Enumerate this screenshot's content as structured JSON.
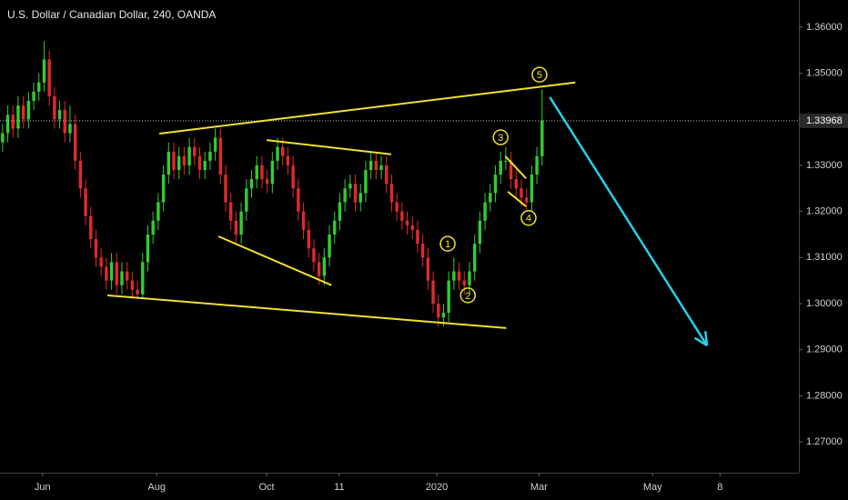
{
  "chart_data": {
    "type": "candlestick",
    "title": "U.S. Dollar / Canadian Dollar, 240, OANDA",
    "up_color": "#33cc33",
    "down_color": "#e02a2a",
    "open": [
      1.335,
      1.337,
      1.341,
      1.338,
      1.343,
      1.34,
      1.344,
      1.346,
      1.348,
      1.353,
      1.345,
      1.34,
      1.342,
      1.337,
      1.339,
      1.331,
      1.325,
      1.319,
      1.314,
      1.31,
      1.308,
      1.305,
      1.309,
      1.304,
      1.307,
      1.305,
      1.303,
      1.302,
      1.309,
      1.315,
      1.318,
      1.322,
      1.328,
      1.333,
      1.329,
      1.332,
      1.33,
      1.334,
      1.332,
      1.329,
      1.331,
      1.333,
      1.336,
      1.328,
      1.322,
      1.318,
      1.315,
      1.32,
      1.325,
      1.327,
      1.33,
      1.327,
      1.326,
      1.331,
      1.334,
      1.332,
      1.33,
      1.325,
      1.32,
      1.316,
      1.312,
      1.309,
      1.306,
      1.31,
      1.315,
      1.318,
      1.322,
      1.325,
      1.326,
      1.322,
      1.324,
      1.329,
      1.331,
      1.329,
      1.33,
      1.326,
      1.322,
      1.32,
      1.318,
      1.317,
      1.316,
      1.313,
      1.31,
      1.305,
      1.3,
      1.297,
      1.298,
      1.305,
      1.307,
      1.305,
      1.304,
      1.307,
      1.313,
      1.318,
      1.322,
      1.324,
      1.328,
      1.331,
      1.331,
      1.327,
      1.325,
      1.323,
      1.322,
      1.328,
      1.332
    ],
    "high": [
      1.339,
      1.343,
      1.343,
      1.345,
      1.345,
      1.346,
      1.348,
      1.35,
      1.357,
      1.355,
      1.347,
      1.344,
      1.344,
      1.343,
      1.341,
      1.333,
      1.327,
      1.321,
      1.316,
      1.312,
      1.31,
      1.311,
      1.311,
      1.309,
      1.309,
      1.307,
      1.305,
      1.311,
      1.317,
      1.32,
      1.324,
      1.33,
      1.335,
      1.335,
      1.334,
      1.334,
      1.336,
      1.336,
      1.334,
      1.333,
      1.335,
      1.338,
      1.338,
      1.33,
      1.324,
      1.32,
      1.322,
      1.327,
      1.329,
      1.332,
      1.332,
      1.329,
      1.333,
      1.336,
      1.336,
      1.334,
      1.332,
      1.327,
      1.322,
      1.318,
      1.314,
      1.311,
      1.312,
      1.317,
      1.32,
      1.324,
      1.327,
      1.328,
      1.328,
      1.326,
      1.331,
      1.333,
      1.333,
      1.332,
      1.332,
      1.328,
      1.324,
      1.322,
      1.32,
      1.319,
      1.318,
      1.315,
      1.312,
      1.307,
      1.302,
      1.3,
      1.307,
      1.31,
      1.309,
      1.307,
      1.309,
      1.315,
      1.32,
      1.324,
      1.326,
      1.33,
      1.333,
      1.334,
      1.333,
      1.329,
      1.327,
      1.325,
      1.33,
      1.334,
      1.3465
    ],
    "low": [
      1.333,
      1.335,
      1.336,
      1.336,
      1.338,
      1.338,
      1.342,
      1.344,
      1.346,
      1.343,
      1.338,
      1.338,
      1.335,
      1.335,
      1.329,
      1.323,
      1.317,
      1.312,
      1.308,
      1.306,
      1.303,
      1.303,
      1.302,
      1.302,
      1.303,
      1.301,
      1.301,
      1.301,
      1.307,
      1.313,
      1.316,
      1.32,
      1.326,
      1.327,
      1.327,
      1.328,
      1.328,
      1.33,
      1.327,
      1.327,
      1.329,
      1.331,
      1.326,
      1.32,
      1.316,
      1.313,
      1.313,
      1.318,
      1.323,
      1.325,
      1.325,
      1.324,
      1.324,
      1.329,
      1.33,
      1.328,
      1.323,
      1.318,
      1.314,
      1.31,
      1.307,
      1.304,
      1.304,
      1.308,
      1.313,
      1.316,
      1.32,
      1.323,
      1.32,
      1.32,
      1.322,
      1.327,
      1.327,
      1.327,
      1.324,
      1.32,
      1.318,
      1.316,
      1.315,
      1.314,
      1.311,
      1.308,
      1.303,
      1.298,
      1.295,
      1.295,
      1.296,
      1.303,
      1.303,
      1.302,
      1.302,
      1.305,
      1.311,
      1.316,
      1.32,
      1.322,
      1.326,
      1.329,
      1.325,
      1.323,
      1.321,
      1.32,
      1.32,
      1.326,
      1.33
    ],
    "close": [
      1.337,
      1.341,
      1.338,
      1.343,
      1.34,
      1.344,
      1.346,
      1.348,
      1.353,
      1.345,
      1.34,
      1.342,
      1.337,
      1.339,
      1.331,
      1.325,
      1.319,
      1.314,
      1.31,
      1.308,
      1.305,
      1.309,
      1.304,
      1.307,
      1.305,
      1.303,
      1.302,
      1.309,
      1.315,
      1.318,
      1.322,
      1.328,
      1.333,
      1.329,
      1.332,
      1.33,
      1.334,
      1.332,
      1.329,
      1.331,
      1.333,
      1.336,
      1.328,
      1.322,
      1.318,
      1.315,
      1.32,
      1.325,
      1.327,
      1.33,
      1.327,
      1.326,
      1.331,
      1.334,
      1.332,
      1.33,
      1.325,
      1.32,
      1.316,
      1.312,
      1.309,
      1.306,
      1.31,
      1.315,
      1.318,
      1.322,
      1.325,
      1.326,
      1.322,
      1.324,
      1.329,
      1.331,
      1.329,
      1.33,
      1.326,
      1.322,
      1.32,
      1.318,
      1.317,
      1.316,
      1.313,
      1.31,
      1.305,
      1.3,
      1.297,
      1.298,
      1.305,
      1.307,
      1.305,
      1.304,
      1.307,
      1.313,
      1.318,
      1.322,
      1.324,
      1.328,
      1.331,
      1.331,
      1.327,
      1.325,
      1.323,
      1.322,
      1.328,
      1.332,
      1.33968
    ],
    "xlim": [
      -0.5,
      153.5
    ],
    "xticks": [
      {
        "value": 7.7,
        "label": "Jun"
      },
      {
        "value": 29.7,
        "label": "Aug"
      },
      {
        "value": 50.9,
        "label": "Oct"
      },
      {
        "value": 64.9,
        "label": "11"
      },
      {
        "value": 83.7,
        "label": "2020"
      },
      {
        "value": 103.4,
        "label": "Mar"
      },
      {
        "value": 125.3,
        "label": "May"
      },
      {
        "value": 138.3,
        "label": "8"
      }
    ],
    "ylim": [
      1.2633,
      1.3659
    ],
    "yticks": [
      {
        "value": 1.27,
        "label": "1.27000"
      },
      {
        "value": 1.28,
        "label": "1.28000"
      },
      {
        "value": 1.29,
        "label": "1.29000"
      },
      {
        "value": 1.3,
        "label": "1.30000"
      },
      {
        "value": 1.31,
        "label": "1.31000"
      },
      {
        "value": 1.32,
        "label": "1.32000"
      },
      {
        "value": 1.33,
        "label": "1.33000"
      },
      {
        "value": 1.34,
        "label": "1.34000"
      },
      {
        "value": 1.35,
        "label": "1.35000"
      },
      {
        "value": 1.36,
        "label": "1.36000"
      }
    ],
    "last_price": 1.33968,
    "trendline_color": "#f0e130",
    "trendlines": [
      [
        [
          30.2,
          1.3369
        ],
        [
          110.4,
          1.348
        ]
      ],
      [
        [
          20.2,
          1.3018
        ],
        [
          97.1,
          1.2947
        ]
      ],
      [
        [
          50.9,
          1.3355
        ],
        [
          74.9,
          1.3324
        ]
      ],
      [
        [
          41.6,
          1.3146
        ],
        [
          63.4,
          1.304
        ]
      ],
      [
        [
          96.9,
          1.332
        ],
        [
          100.9,
          1.3272
        ]
      ],
      [
        [
          97.4,
          1.3243
        ],
        [
          100.9,
          1.3211
        ]
      ]
    ],
    "arrow_color": "#22d3e6",
    "arrow": [
      [
        105.5,
        1.3448
      ],
      [
        135.8,
        1.2909
      ]
    ],
    "wave_labels": [
      {
        "text": "1",
        "x": 85.8,
        "y": 1.313
      },
      {
        "text": "2",
        "x": 89.7,
        "y": 1.3018
      },
      {
        "text": "3",
        "x": 96.0,
        "y": 1.3361
      },
      {
        "text": "4",
        "x": 101.4,
        "y": 1.3186
      },
      {
        "text": "5",
        "x": 103.5,
        "y": 1.3497
      }
    ]
  }
}
